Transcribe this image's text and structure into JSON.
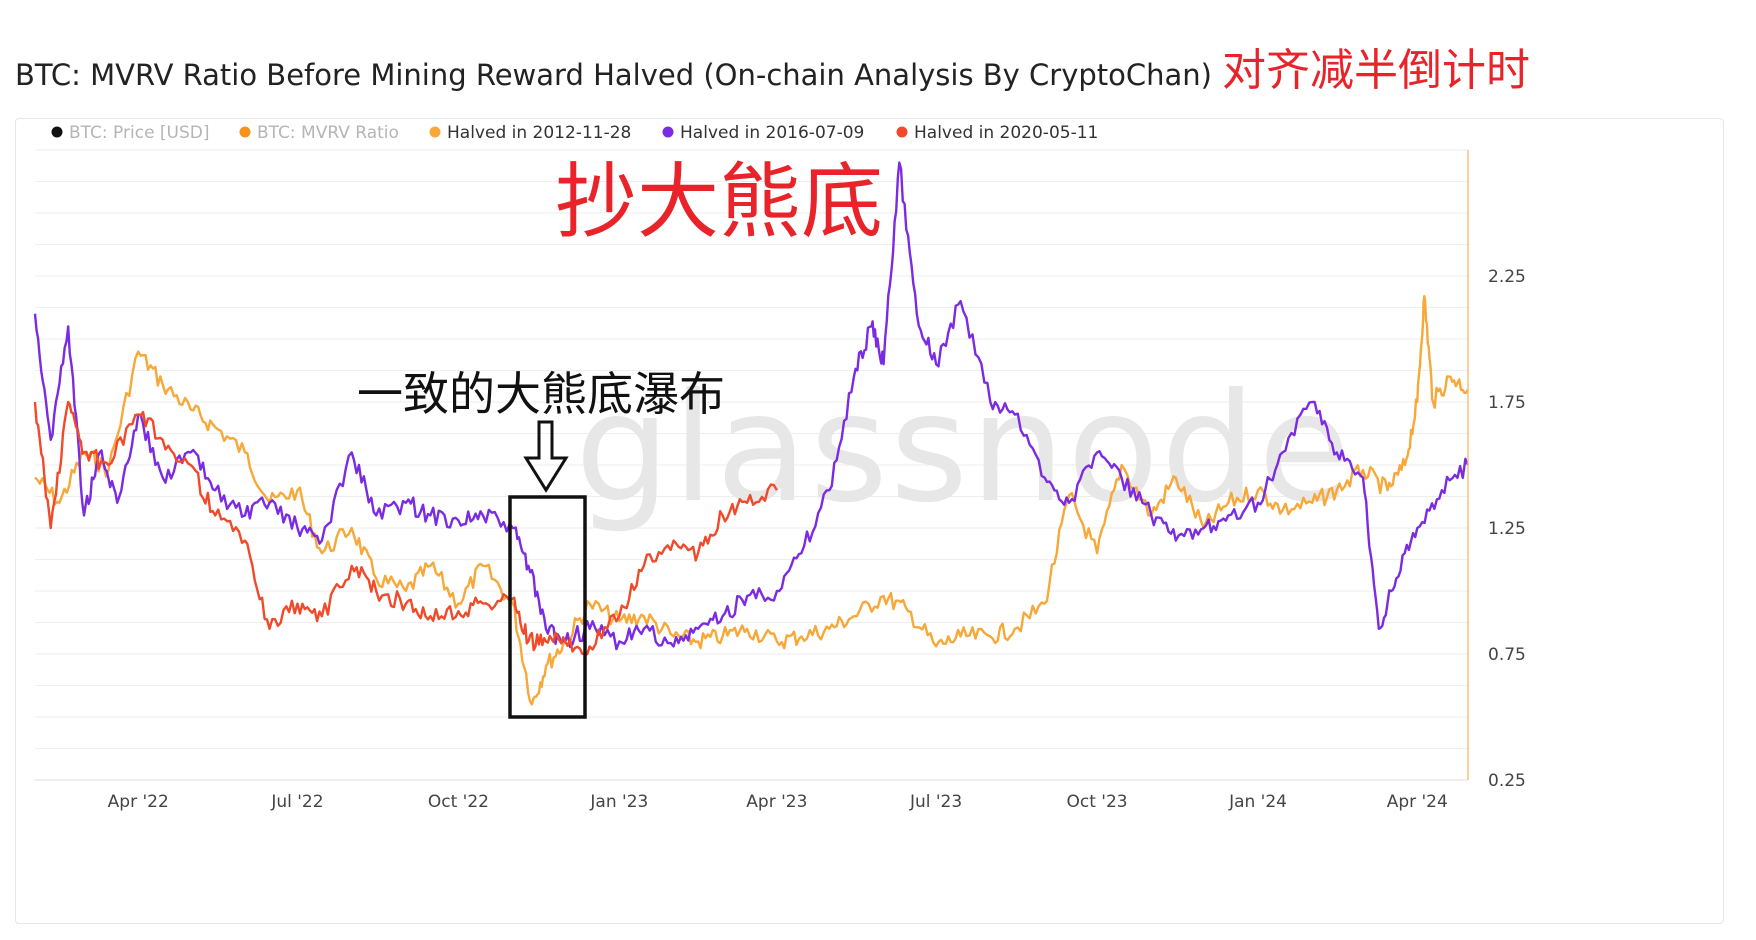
{
  "title": "BTC: MVRV Ratio Before Mining Reward Halved (On-chain Analysis By CryptoChan)",
  "title_annotation": "对齐减半倒计时",
  "watermark": "glassnode",
  "annotations": {
    "big_bottom": "抄大熊底",
    "waterfall": "一致的大熊底瀑布"
  },
  "colors": {
    "price": "#111111",
    "mvrv": "#f7931a",
    "h2012": "#f7a838",
    "h2016": "#7b2be2",
    "h2020": "#f04a2a",
    "annotation_red": "#e8242a",
    "grid": "#eeeeee"
  },
  "chart_data": {
    "type": "line",
    "title": "BTC: MVRV Ratio Before Mining Reward Halved (On-chain Analysis By CryptoChan)",
    "x_ticks": [
      "Apr '22",
      "Jul '22",
      "Oct '22",
      "Jan '23",
      "Apr '23",
      "Jul '23",
      "Oct '23",
      "Jan '24",
      "Apr '24"
    ],
    "x_range": [
      "2022-02-01",
      "2024-04-30"
    ],
    "y_ticks": [
      0.25,
      0.75,
      1.25,
      1.75,
      2.25
    ],
    "y_range": [
      0.25,
      2.75
    ],
    "grid": true,
    "legend_placement": "top-left",
    "legend": [
      {
        "name": "BTC: Price [USD]",
        "color": "#111111",
        "muted": true
      },
      {
        "name": "BTC: MVRV Ratio",
        "color": "#f7931a",
        "muted": true
      },
      {
        "name": "Halved in 2012-11-28",
        "color": "#f7a838",
        "muted": false
      },
      {
        "name": "Halved in 2016-07-09",
        "color": "#7b2be2",
        "muted": false
      },
      {
        "name": "Halved in 2020-05-11",
        "color": "#f04a2a",
        "muted": false
      }
    ],
    "series": [
      {
        "name": "Halved in 2012-11-28",
        "color": "#f7a838",
        "x": [
          "2022-02-01",
          "2022-02-15",
          "2022-03-01",
          "2022-03-15",
          "2022-04-01",
          "2022-04-15",
          "2022-05-01",
          "2022-05-15",
          "2022-06-01",
          "2022-06-15",
          "2022-07-01",
          "2022-07-15",
          "2022-08-01",
          "2022-08-15",
          "2022-09-01",
          "2022-09-15",
          "2022-10-01",
          "2022-10-15",
          "2022-11-01",
          "2022-11-12",
          "2022-11-20",
          "2022-12-01",
          "2022-12-15",
          "2023-01-01",
          "2023-01-15",
          "2023-02-01",
          "2023-02-15",
          "2023-03-01",
          "2023-03-15",
          "2023-04-01",
          "2023-04-15",
          "2023-05-01",
          "2023-05-15",
          "2023-06-01",
          "2023-06-15",
          "2023-07-01",
          "2023-07-15",
          "2023-08-01",
          "2023-08-15",
          "2023-09-01",
          "2023-09-15",
          "2023-10-01",
          "2023-10-15",
          "2023-11-01",
          "2023-11-15",
          "2023-12-01",
          "2023-12-15",
          "2024-01-01",
          "2024-01-15",
          "2024-02-01",
          "2024-02-15",
          "2024-03-01",
          "2024-03-15",
          "2024-03-25",
          "2024-04-01",
          "2024-04-05",
          "2024-04-10",
          "2024-04-20",
          "2024-04-30"
        ],
        "y": [
          1.45,
          1.35,
          1.55,
          1.48,
          1.95,
          1.82,
          1.72,
          1.65,
          1.55,
          1.35,
          1.4,
          1.15,
          1.25,
          1.05,
          1.0,
          1.1,
          0.95,
          1.1,
          0.95,
          0.55,
          0.7,
          0.8,
          0.95,
          0.88,
          0.9,
          0.82,
          0.8,
          0.82,
          0.85,
          0.8,
          0.82,
          0.85,
          0.9,
          0.98,
          0.92,
          0.78,
          0.82,
          0.82,
          0.85,
          0.95,
          1.38,
          1.15,
          1.5,
          1.3,
          1.45,
          1.25,
          1.35,
          1.4,
          1.32,
          1.35,
          1.4,
          1.48,
          1.4,
          1.5,
          1.75,
          2.17,
          1.75,
          1.85,
          1.8
        ]
      },
      {
        "name": "Halved in 2016-07-09",
        "color": "#7b2be2",
        "x": [
          "2022-02-01",
          "2022-02-10",
          "2022-02-20",
          "2022-03-01",
          "2022-03-10",
          "2022-03-20",
          "2022-04-01",
          "2022-04-15",
          "2022-05-01",
          "2022-05-15",
          "2022-06-01",
          "2022-06-15",
          "2022-07-01",
          "2022-07-15",
          "2022-08-01",
          "2022-08-15",
          "2022-09-01",
          "2022-09-15",
          "2022-10-01",
          "2022-10-15",
          "2022-11-01",
          "2022-11-10",
          "2022-11-20",
          "2022-12-01",
          "2022-12-15",
          "2023-01-01",
          "2023-01-15",
          "2023-02-01",
          "2023-02-15",
          "2023-03-01",
          "2023-03-15",
          "2023-04-01",
          "2023-04-15",
          "2023-05-01",
          "2023-05-15",
          "2023-05-25",
          "2023-06-01",
          "2023-06-10",
          "2023-06-20",
          "2023-07-01",
          "2023-07-15",
          "2023-08-01",
          "2023-08-15",
          "2023-09-01",
          "2023-09-15",
          "2023-10-01",
          "2023-10-15",
          "2023-11-01",
          "2023-11-15",
          "2023-12-01",
          "2023-12-15",
          "2024-01-01",
          "2024-01-15",
          "2024-02-01",
          "2024-02-15",
          "2024-03-01",
          "2024-03-10",
          "2024-03-20",
          "2024-04-01",
          "2024-04-15",
          "2024-04-30"
        ],
        "y": [
          2.1,
          1.6,
          2.05,
          1.3,
          1.55,
          1.35,
          1.7,
          1.45,
          1.55,
          1.4,
          1.3,
          1.35,
          1.25,
          1.2,
          1.55,
          1.3,
          1.35,
          1.3,
          1.28,
          1.3,
          1.25,
          1.1,
          0.85,
          0.8,
          0.85,
          0.8,
          0.85,
          0.78,
          0.85,
          0.9,
          0.98,
          1.0,
          1.15,
          1.4,
          1.85,
          2.05,
          1.9,
          2.7,
          2.1,
          1.9,
          2.15,
          1.75,
          1.7,
          1.45,
          1.35,
          1.55,
          1.45,
          1.3,
          1.2,
          1.25,
          1.3,
          1.35,
          1.55,
          1.75,
          1.55,
          1.45,
          0.85,
          1.05,
          1.25,
          1.4,
          1.5
        ]
      },
      {
        "name": "Halved in 2020-05-11",
        "color": "#f04a2a",
        "x": [
          "2022-02-01",
          "2022-02-10",
          "2022-02-20",
          "2022-03-01",
          "2022-03-15",
          "2022-04-01",
          "2022-04-15",
          "2022-05-01",
          "2022-05-15",
          "2022-06-01",
          "2022-06-15",
          "2022-07-01",
          "2022-07-15",
          "2022-08-01",
          "2022-08-15",
          "2022-09-01",
          "2022-09-15",
          "2022-10-01",
          "2022-10-15",
          "2022-11-01",
          "2022-11-10",
          "2022-11-20",
          "2022-12-01",
          "2022-12-15",
          "2023-01-01",
          "2023-01-15",
          "2023-02-01",
          "2023-02-15",
          "2023-03-01",
          "2023-03-15",
          "2023-04-01"
        ],
        "y": [
          1.75,
          1.25,
          1.75,
          1.55,
          1.5,
          1.7,
          1.6,
          1.5,
          1.3,
          1.2,
          0.85,
          0.95,
          0.9,
          1.1,
          1.0,
          0.95,
          0.9,
          0.92,
          0.95,
          0.97,
          0.8,
          0.8,
          0.8,
          0.78,
          0.9,
          1.1,
          1.2,
          1.15,
          1.3,
          1.35,
          1.4
        ]
      }
    ]
  }
}
